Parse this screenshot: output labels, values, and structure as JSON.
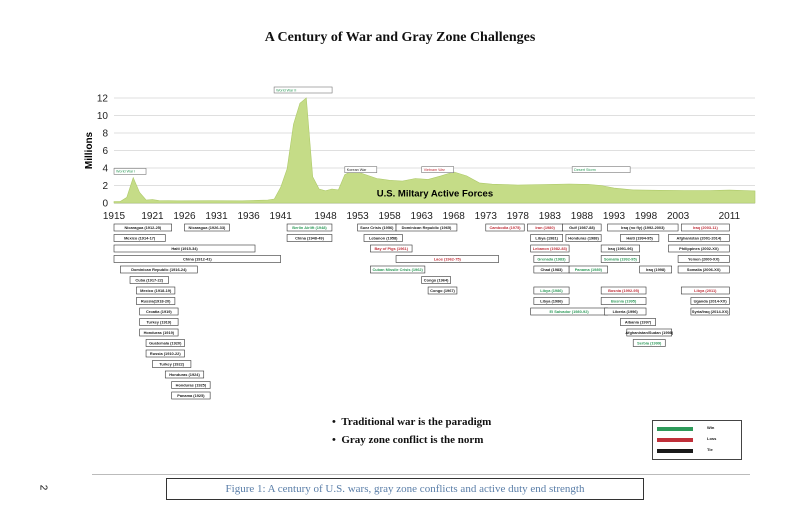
{
  "page": {
    "title": "A Century of War and Gray Zone Challenges",
    "caption": "Figure 1: A century of U.S. wars, gray zone conflicts and active duty end strength",
    "page_number": "2",
    "bullets": [
      "Traditional war is the paradigm",
      "Gray zone conflict is the norm"
    ],
    "legend": [
      {
        "label": "Win",
        "color": "#2e9a5a"
      },
      {
        "label": "Loss",
        "color": "#c0303a"
      },
      {
        "label": "Tie",
        "color": "#1a1a1a"
      }
    ]
  },
  "chart_data": {
    "type": "area",
    "title": "A Century of War and Gray Zone Challenges",
    "ylabel": "Millions",
    "xlabel": "",
    "ylim": [
      0,
      12
    ],
    "xlim": [
      1915,
      2015
    ],
    "yticks": [
      0,
      2,
      4,
      6,
      8,
      10,
      12
    ],
    "xticks": [
      1915,
      1921,
      1926,
      1931,
      1936,
      1941,
      1948,
      1953,
      1958,
      1963,
      1968,
      1973,
      1978,
      1983,
      1988,
      1993,
      1998,
      2003,
      2011
    ],
    "grid": true,
    "fill_color": "#c5dc87",
    "series": [
      {
        "name": "U.S. Miltary Active Forces",
        "x": [
          1915,
          1916,
          1917,
          1918,
          1919,
          1920,
          1921,
          1922,
          1925,
          1930,
          1935,
          1939,
          1940,
          1941,
          1942,
          1943,
          1944,
          1945,
          1946,
          1947,
          1948,
          1949,
          1950,
          1951,
          1952,
          1953,
          1954,
          1956,
          1958,
          1960,
          1962,
          1964,
          1966,
          1968,
          1970,
          1972,
          1974,
          1978,
          1982,
          1986,
          1989,
          1991,
          1993,
          1996,
          2000,
          2004,
          2008,
          2011,
          2015
        ],
        "values": [
          0.17,
          0.18,
          0.64,
          2.9,
          1.2,
          0.34,
          0.39,
          0.27,
          0.25,
          0.26,
          0.25,
          0.33,
          0.46,
          1.8,
          3.9,
          9.0,
          11.4,
          12.0,
          3.0,
          1.6,
          1.4,
          1.6,
          1.5,
          3.25,
          3.6,
          3.55,
          3.3,
          2.8,
          2.6,
          2.5,
          2.8,
          2.7,
          3.1,
          3.55,
          3.1,
          2.3,
          2.15,
          2.06,
          2.1,
          2.17,
          2.13,
          2.0,
          1.7,
          1.5,
          1.45,
          1.43,
          1.42,
          1.48,
          1.38
        ]
      }
    ],
    "annotations": [
      {
        "label": "World War I",
        "year": 1917.5,
        "y": 3.5,
        "outcome": "win"
      },
      {
        "label": "World War II",
        "year": 1944.5,
        "y": 12.8,
        "outcome": "win"
      },
      {
        "label": "Korean War",
        "year": 1953.5,
        "y": 3.7,
        "outcome": "tie"
      },
      {
        "label": "Vietnam War",
        "year": 1965.5,
        "y": 3.7,
        "outcome": "loss"
      },
      {
        "label": "Desert Storm",
        "year": 1991,
        "y": 3.7,
        "outcome": "win"
      }
    ],
    "conflicts": [
      {
        "label": "Nicaragua (1912-25)",
        "start": 1915,
        "end": 1924,
        "row": 0,
        "outcome": "tie"
      },
      {
        "label": "Nicaragua (1926-33)",
        "start": 1926,
        "end": 1933,
        "row": 0,
        "outcome": "tie"
      },
      {
        "label": "Mexico (1914-17)",
        "start": 1915,
        "end": 1923,
        "row": 1,
        "outcome": "tie"
      },
      {
        "label": "Haiti (1915-34)",
        "start": 1915,
        "end": 1937,
        "row": 2,
        "outcome": "tie"
      },
      {
        "label": "China (1912-41)",
        "start": 1915,
        "end": 1941,
        "row": 3,
        "outcome": "tie"
      },
      {
        "label": "Dominican Republic (1916-24)",
        "start": 1916,
        "end": 1928,
        "row": 4,
        "outcome": "tie"
      },
      {
        "label": "Cuba (1917-22)",
        "start": 1917.5,
        "end": 1923.5,
        "row": 5,
        "outcome": "tie"
      },
      {
        "label": "Mexico (1918-19)",
        "start": 1918.5,
        "end": 1924.5,
        "row": 6,
        "outcome": "tie"
      },
      {
        "label": "Russia(1918-20)",
        "start": 1918.5,
        "end": 1924.5,
        "row": 7,
        "outcome": "tie"
      },
      {
        "label": "Croatia (1919)",
        "start": 1919,
        "end": 1925,
        "row": 8,
        "outcome": "tie"
      },
      {
        "label": "Turkey (1919)",
        "start": 1919,
        "end": 1925,
        "row": 9,
        "outcome": "tie"
      },
      {
        "label": "Honduras (1919)",
        "start": 1919,
        "end": 1925,
        "row": 10,
        "outcome": "tie"
      },
      {
        "label": "Guatemala (1920)",
        "start": 1920,
        "end": 1926,
        "row": 11,
        "outcome": "tie"
      },
      {
        "label": "Russia (1910-22)",
        "start": 1920,
        "end": 1926,
        "row": 12,
        "outcome": "tie"
      },
      {
        "label": "Turkey (1922)",
        "start": 1921,
        "end": 1927,
        "row": 13,
        "outcome": "tie"
      },
      {
        "label": "Honduras (1924)",
        "start": 1923,
        "end": 1929,
        "row": 14,
        "outcome": "tie"
      },
      {
        "label": "Honduras (1925)",
        "start": 1924,
        "end": 1930,
        "row": 15,
        "outcome": "tie"
      },
      {
        "label": "Panama (1925)",
        "start": 1924,
        "end": 1930,
        "row": 16,
        "outcome": "tie"
      },
      {
        "label": "Berlin Airlift (1948)",
        "start": 1942,
        "end": 1949,
        "row": 0,
        "outcome": "win"
      },
      {
        "label": "China (1948-49)",
        "start": 1942,
        "end": 1949,
        "row": 1,
        "outcome": "tie"
      },
      {
        "label": "Suez Crisis (1956)",
        "start": 1953,
        "end": 1959,
        "row": 0,
        "outcome": "tie"
      },
      {
        "label": "Lebanon (1958)",
        "start": 1954,
        "end": 1960,
        "row": 1,
        "outcome": "tie"
      },
      {
        "label": "Bay of Pigs (1961)",
        "start": 1955,
        "end": 1961.5,
        "row": 2,
        "outcome": "loss"
      },
      {
        "label": "Dominican Republic (1965)",
        "start": 1959,
        "end": 1968.5,
        "row": 0,
        "outcome": "tie"
      },
      {
        "label": "Laos (1962-75)",
        "start": 1959,
        "end": 1975,
        "row": 3,
        "outcome": "loss"
      },
      {
        "label": "Cuban Missile Crisis (1962)",
        "start": 1955,
        "end": 1963.5,
        "row": 4,
        "outcome": "win"
      },
      {
        "label": "Congo (1964)",
        "start": 1963,
        "end": 1967.5,
        "row": 5,
        "outcome": "tie"
      },
      {
        "label": "Congo (1967)",
        "start": 1964,
        "end": 1968.5,
        "row": 6,
        "outcome": "tie"
      },
      {
        "label": "Cambodia (1975)",
        "start": 1973,
        "end": 1979,
        "row": 0,
        "outcome": "loss"
      },
      {
        "label": "Iran (1980)",
        "start": 1979.5,
        "end": 1985,
        "row": 0,
        "outcome": "loss"
      },
      {
        "label": "Gulf (1987-88)",
        "start": 1985,
        "end": 1991,
        "row": 0,
        "outcome": "tie"
      },
      {
        "label": "Iraq (no fly) (1992-2003)",
        "start": 1992,
        "end": 2003,
        "row": 0,
        "outcome": "tie"
      },
      {
        "label": "Iraq (2003-11)",
        "start": 2003.5,
        "end": 2011,
        "row": 0,
        "outcome": "loss"
      },
      {
        "label": "Libya (1981)",
        "start": 1980,
        "end": 1985,
        "row": 1,
        "outcome": "tie"
      },
      {
        "label": "Honduras (1988)",
        "start": 1985.5,
        "end": 1991,
        "row": 1,
        "outcome": "tie"
      },
      {
        "label": "Haiti (1994-95)",
        "start": 1994,
        "end": 2000,
        "row": 1,
        "outcome": "tie"
      },
      {
        "label": "Afghanistan (2001-2014)",
        "start": 2001.5,
        "end": 2011,
        "row": 1,
        "outcome": "tie"
      },
      {
        "label": "Lebanon (1982-83)",
        "start": 1980,
        "end": 1986,
        "row": 2,
        "outcome": "loss"
      },
      {
        "label": "Iraq (1991-96)",
        "start": 1991,
        "end": 1997,
        "row": 2,
        "outcome": "tie"
      },
      {
        "label": "Philippines (2002-XX)",
        "start": 2001.5,
        "end": 2011,
        "row": 2,
        "outcome": "tie"
      },
      {
        "label": "Grenada (1983)",
        "start": 1980.5,
        "end": 1986,
        "row": 3,
        "outcome": "win"
      },
      {
        "label": "Somalia (1992-95)",
        "start": 1991,
        "end": 1997,
        "row": 3,
        "outcome": "win"
      },
      {
        "label": "Yemen (2000-XX)",
        "start": 2003,
        "end": 2011,
        "row": 3,
        "outcome": "tie"
      },
      {
        "label": "Chad (1983)",
        "start": 1980.5,
        "end": 1986,
        "row": 4,
        "outcome": "tie"
      },
      {
        "label": "Panama (1989)",
        "start": 1986,
        "end": 1992,
        "row": 4,
        "outcome": "win"
      },
      {
        "label": "Iraq (1998)",
        "start": 1997,
        "end": 2002,
        "row": 4,
        "outcome": "tie"
      },
      {
        "label": "Somalia (2006-XX)",
        "start": 2003,
        "end": 2011,
        "row": 4,
        "outcome": "tie"
      },
      {
        "label": "Libya (1986)",
        "start": 1980.5,
        "end": 1986,
        "row": 6,
        "outcome": "win"
      },
      {
        "label": "Bosnia (1992-95)",
        "start": 1991,
        "end": 1998,
        "row": 6,
        "outcome": "loss"
      },
      {
        "label": "Libya (2011)",
        "start": 2003.5,
        "end": 2011,
        "row": 6,
        "outcome": "loss"
      },
      {
        "label": "Libya (1986)",
        "start": 1980.5,
        "end": 1986,
        "row": 7,
        "outcome": "tie"
      },
      {
        "label": "Bosnia (1995)",
        "start": 1991,
        "end": 1998,
        "row": 7,
        "outcome": "win"
      },
      {
        "label": "Uganda (2014-XX)",
        "start": 2005,
        "end": 2011,
        "row": 7,
        "outcome": "tie"
      },
      {
        "label": "El Salvador (1980-92)",
        "start": 1980,
        "end": 1992,
        "row": 8,
        "outcome": "win"
      },
      {
        "label": "Liberia (1996)",
        "start": 1991.5,
        "end": 1998,
        "row": 8,
        "outcome": "tie"
      },
      {
        "label": "Syria/Iraq (2014-XX)",
        "start": 2005,
        "end": 2011,
        "row": 8,
        "outcome": "tie"
      },
      {
        "label": "Albania (1997)",
        "start": 1994,
        "end": 1999.5,
        "row": 9,
        "outcome": "tie"
      },
      {
        "label": "Afghanistan/Sudan (1998)",
        "start": 1995,
        "end": 2002,
        "row": 10,
        "outcome": "tie"
      },
      {
        "label": "Serbia (1999)",
        "start": 1996,
        "end": 2001,
        "row": 11,
        "outcome": "win"
      }
    ]
  }
}
